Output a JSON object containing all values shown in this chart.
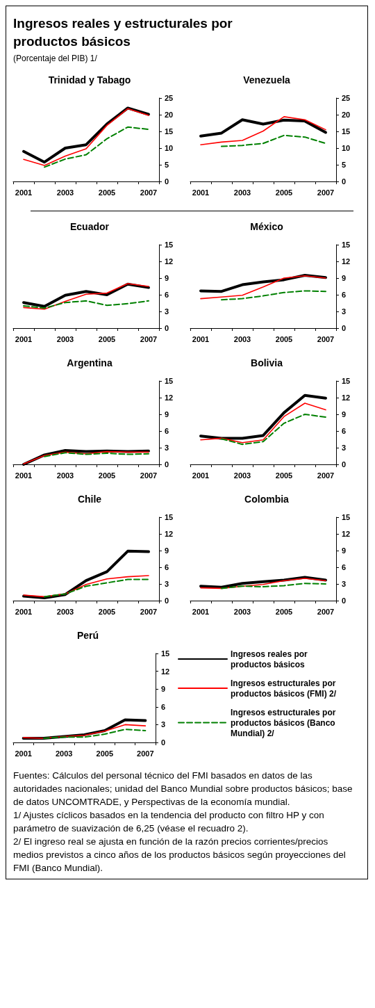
{
  "chart_data": [
    {
      "type": "other",
      "title": "Ingresos reales y estructurales por productos básicos",
      "subtitle": "(Porcentaje del PIB) 1/"
    },
    {
      "type": "line",
      "title": "Trinidad y Tabago",
      "categories": [
        "2001",
        null,
        "2003",
        null,
        "2005",
        null,
        "2007"
      ],
      "ylim": [
        0,
        25
      ],
      "yticks": [
        0,
        5,
        10,
        15,
        20,
        25
      ],
      "marker": "none",
      "series": [
        {
          "color": "#000000",
          "line_style": "solid",
          "values": [
            9,
            5.8,
            10,
            11,
            17.2,
            22,
            20.1
          ]
        },
        {
          "color": "#ff0000",
          "line_style": "solid",
          "values": [
            6.6,
            4.8,
            7.6,
            9.8,
            16.8,
            21.8,
            19.8
          ]
        },
        {
          "color": "#008000",
          "line_style": "dashed",
          "values": [
            null,
            4.3,
            6.7,
            8,
            12.8,
            16.3,
            15.6
          ]
        }
      ]
    },
    {
      "type": "line",
      "title": "Venezuela",
      "categories": [
        "2001",
        null,
        "2003",
        null,
        "2005",
        null,
        "2007"
      ],
      "ylim": [
        0,
        25
      ],
      "yticks": [
        0,
        5,
        10,
        15,
        20,
        25
      ],
      "marker": "none",
      "series": [
        {
          "color": "#000000",
          "line_style": "solid",
          "values": [
            13.6,
            14.5,
            18.5,
            17.2,
            18.4,
            18.1,
            14.7
          ]
        },
        {
          "color": "#ff0000",
          "line_style": "solid",
          "values": [
            11,
            11.8,
            12.3,
            15.1,
            19.4,
            18.5,
            15.5
          ]
        },
        {
          "color": "#008000",
          "line_style": "dashed",
          "values": [
            null,
            10.5,
            10.8,
            11.4,
            13.8,
            13.3,
            11.4
          ]
        }
      ]
    },
    {
      "type": "line",
      "title": "Ecuador",
      "categories": [
        "2001",
        null,
        "2003",
        null,
        "2005",
        null,
        "2007"
      ],
      "ylim": [
        0,
        15
      ],
      "yticks": [
        0,
        3,
        6,
        9,
        12,
        15
      ],
      "marker": "none",
      "series": [
        {
          "color": "#000000",
          "line_style": "solid",
          "values": [
            4.6,
            3.9,
            5.9,
            6.6,
            6,
            7.9,
            7.3
          ]
        },
        {
          "color": "#ff0000",
          "line_style": "solid",
          "values": [
            3.7,
            3.4,
            4.8,
            6.1,
            6.3,
            8,
            7.5
          ]
        },
        {
          "color": "#008000",
          "line_style": "dashed",
          "values": [
            4,
            3.6,
            4.6,
            4.9,
            4.1,
            4.4,
            4.9
          ]
        }
      ]
    },
    {
      "type": "line",
      "title": "México",
      "categories": [
        "2001",
        null,
        "2003",
        null,
        "2005",
        null,
        "2007"
      ],
      "ylim": [
        0,
        15
      ],
      "yticks": [
        0,
        3,
        6,
        9,
        12,
        15
      ],
      "marker": "none",
      "series": [
        {
          "color": "#000000",
          "line_style": "solid",
          "values": [
            6.7,
            6.6,
            7.8,
            8.3,
            8.7,
            9.5,
            9.1
          ]
        },
        {
          "color": "#ff0000",
          "line_style": "solid",
          "values": [
            5.3,
            5.6,
            5.9,
            7.4,
            9,
            9.4,
            9
          ]
        },
        {
          "color": "#008000",
          "line_style": "dashed",
          "values": [
            null,
            5.1,
            5.3,
            5.8,
            6.4,
            6.7,
            6.6
          ]
        }
      ]
    },
    {
      "type": "line",
      "title": "Argentina",
      "categories": [
        "2001",
        null,
        "2003",
        null,
        "2005",
        null,
        "2007"
      ],
      "ylim": [
        0,
        15
      ],
      "yticks": [
        0,
        3,
        6,
        9,
        12,
        15
      ],
      "marker": "none",
      "series": [
        {
          "color": "#000000",
          "line_style": "solid",
          "values": [
            0,
            1.7,
            2.5,
            2.3,
            2.4,
            2.3,
            2.4
          ]
        },
        {
          "color": "#ff0000",
          "line_style": "solid",
          "values": [
            0.1,
            1.6,
            2.2,
            1.9,
            2.3,
            2.2,
            2.2
          ]
        },
        {
          "color": "#008000",
          "line_style": "dashed",
          "values": [
            null,
            1.4,
            2.1,
            1.8,
            2,
            1.8,
            1.9
          ]
        }
      ]
    },
    {
      "type": "line",
      "title": "Bolivia",
      "categories": [
        "2001",
        null,
        "2003",
        null,
        "2005",
        null,
        "2007"
      ],
      "ylim": [
        0,
        15
      ],
      "yticks": [
        0,
        3,
        6,
        9,
        12,
        15
      ],
      "marker": "none",
      "series": [
        {
          "color": "#000000",
          "line_style": "solid",
          "values": [
            5.1,
            4.7,
            4.7,
            5.2,
            9.3,
            12.4,
            11.9
          ]
        },
        {
          "color": "#ff0000",
          "line_style": "solid",
          "values": [
            4.4,
            4.7,
            3.9,
            4.4,
            8.6,
            11,
            9.8
          ]
        },
        {
          "color": "#008000",
          "line_style": "dashed",
          "values": [
            null,
            4.6,
            3.6,
            4.1,
            7.4,
            9,
            8.5
          ]
        }
      ]
    },
    {
      "type": "line",
      "title": "Chile",
      "categories": [
        "2001",
        null,
        "2003",
        null,
        "2005",
        null,
        "2007"
      ],
      "ylim": [
        0,
        15
      ],
      "yticks": [
        0,
        3,
        6,
        9,
        12,
        15
      ],
      "marker": "none",
      "series": [
        {
          "color": "#000000",
          "line_style": "solid",
          "values": [
            0.8,
            0.5,
            1.1,
            3.6,
            5.2,
            8.9,
            8.8
          ]
        },
        {
          "color": "#ff0000",
          "line_style": "solid",
          "values": [
            1,
            0.7,
            1.2,
            2.9,
            3.9,
            4.3,
            4.5
          ]
        },
        {
          "color": "#008000",
          "line_style": "dashed",
          "values": [
            null,
            0.7,
            1.2,
            2.6,
            3.2,
            3.8,
            3.8
          ]
        }
      ]
    },
    {
      "type": "line",
      "title": "Colombia",
      "categories": [
        "2001",
        null,
        "2003",
        null,
        "2005",
        null,
        "2007"
      ],
      "ylim": [
        0,
        15
      ],
      "yticks": [
        0,
        3,
        6,
        9,
        12,
        15
      ],
      "marker": "none",
      "series": [
        {
          "color": "#000000",
          "line_style": "solid",
          "values": [
            2.6,
            2.4,
            3.1,
            3.4,
            3.7,
            4.2,
            3.7
          ]
        },
        {
          "color": "#ff0000",
          "line_style": "solid",
          "values": [
            2.3,
            2.2,
            2.6,
            2.9,
            3.6,
            4,
            3.6
          ]
        },
        {
          "color": "#008000",
          "line_style": "dashed",
          "values": [
            null,
            2.2,
            2.6,
            2.5,
            2.7,
            3.1,
            3
          ]
        }
      ]
    },
    {
      "type": "line",
      "title": "Perú",
      "categories": [
        "2001",
        null,
        "2003",
        null,
        "2005",
        null,
        "2007"
      ],
      "ylim": [
        0,
        15
      ],
      "yticks": [
        0,
        3,
        6,
        9,
        12,
        15
      ],
      "marker": "none",
      "legend": "right",
      "series": [
        {
          "name": "Ingresos reales por productos básicos",
          "color": "#000000",
          "line_style": "solid",
          "values": [
            0.7,
            0.7,
            1,
            1.3,
            2,
            3.8,
            3.7
          ]
        },
        {
          "name": "Ingresos estructurales por productos básicos (FMI) 2/",
          "color": "#ff0000",
          "line_style": "solid",
          "values": [
            0.8,
            0.7,
            1,
            1.2,
            1.9,
            3,
            2.8
          ]
        },
        {
          "name": "Ingresos estructurales por productos básicos (Banco Mundial) 2/",
          "color": "#008000",
          "line_style": "dashed",
          "values": [
            null,
            0.7,
            0.9,
            0.9,
            1.4,
            2.2,
            2
          ]
        }
      ]
    },
    {
      "type": "other",
      "annotations": [
        "Fuentes: Cálculos del personal técnico del FMI basados en datos de las autoridades nacionales; unidad del Banco Mundial sobre productos básicos; base de datos UNCOMTRADE, y Perspectivas de la economía mundial.",
        "1/ Ajustes cíclicos basados en la tendencia del producto con filtro HP y con parámetro de suavización de 6,25 (véase el recuadro 2).",
        "2/ El ingreso real se ajusta en función de la razón precios corrientes/precios medios previstos a cinco años de los productos básicos según proyecciones del FMI (Banco Mundial)."
      ]
    }
  ]
}
